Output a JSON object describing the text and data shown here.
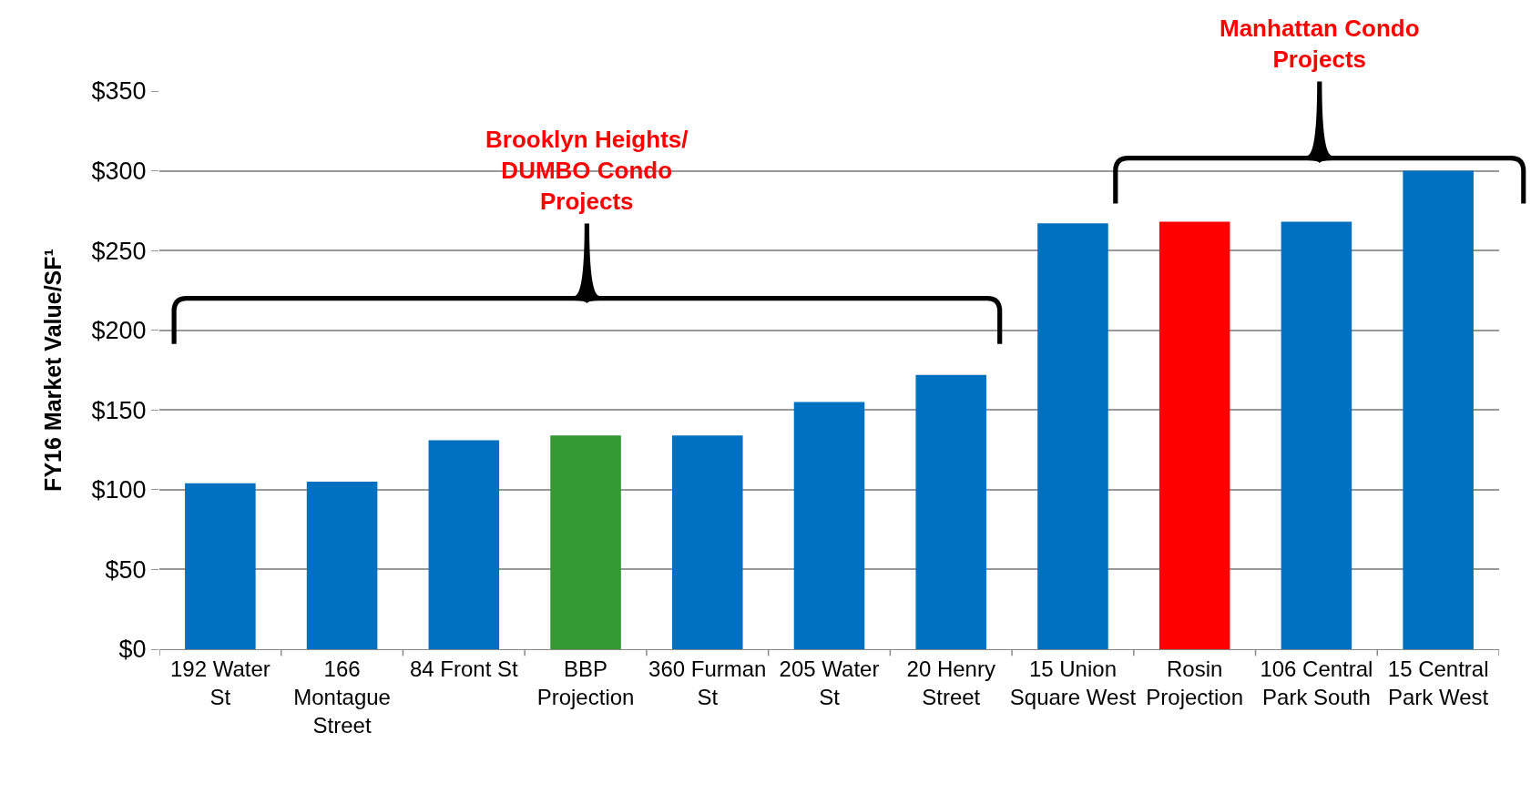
{
  "chart_data": {
    "type": "bar",
    "ylabel": "FY16 Market Value/SF¹",
    "categories": [
      "192 Water St",
      "166 Montague Street",
      "84 Front St",
      "BBP Projection",
      "360 Furman St",
      "205 Water St",
      "20 Henry Street",
      "15 Union Square West",
      "Rosin Projection",
      "106 Central Park South",
      "15 Central Park West"
    ],
    "values": [
      104,
      105,
      131,
      134,
      134,
      155,
      172,
      267,
      268,
      268,
      300
    ],
    "colors": [
      "#0070c0",
      "#0070c0",
      "#0070c0",
      "#339933",
      "#0070c0",
      "#0070c0",
      "#0070c0",
      "#0070c0",
      "#ff0000",
      "#0070c0",
      "#0070c0"
    ],
    "ylim": [
      0,
      350
    ],
    "yticks": [
      {
        "value": 0,
        "label": "$0"
      },
      {
        "value": 50,
        "label": "$50"
      },
      {
        "value": 100,
        "label": "$100"
      },
      {
        "value": 150,
        "label": "$150"
      },
      {
        "value": 200,
        "label": "$200"
      },
      {
        "value": 250,
        "label": "$250"
      },
      {
        "value": 300,
        "label": "$300"
      },
      {
        "value": 350,
        "label": "$350"
      }
    ],
    "grid": "y",
    "annotations": [
      "Brooklyn Heights/ DUMBO Condo Projects",
      "Manhattan Condo Projects"
    ]
  }
}
